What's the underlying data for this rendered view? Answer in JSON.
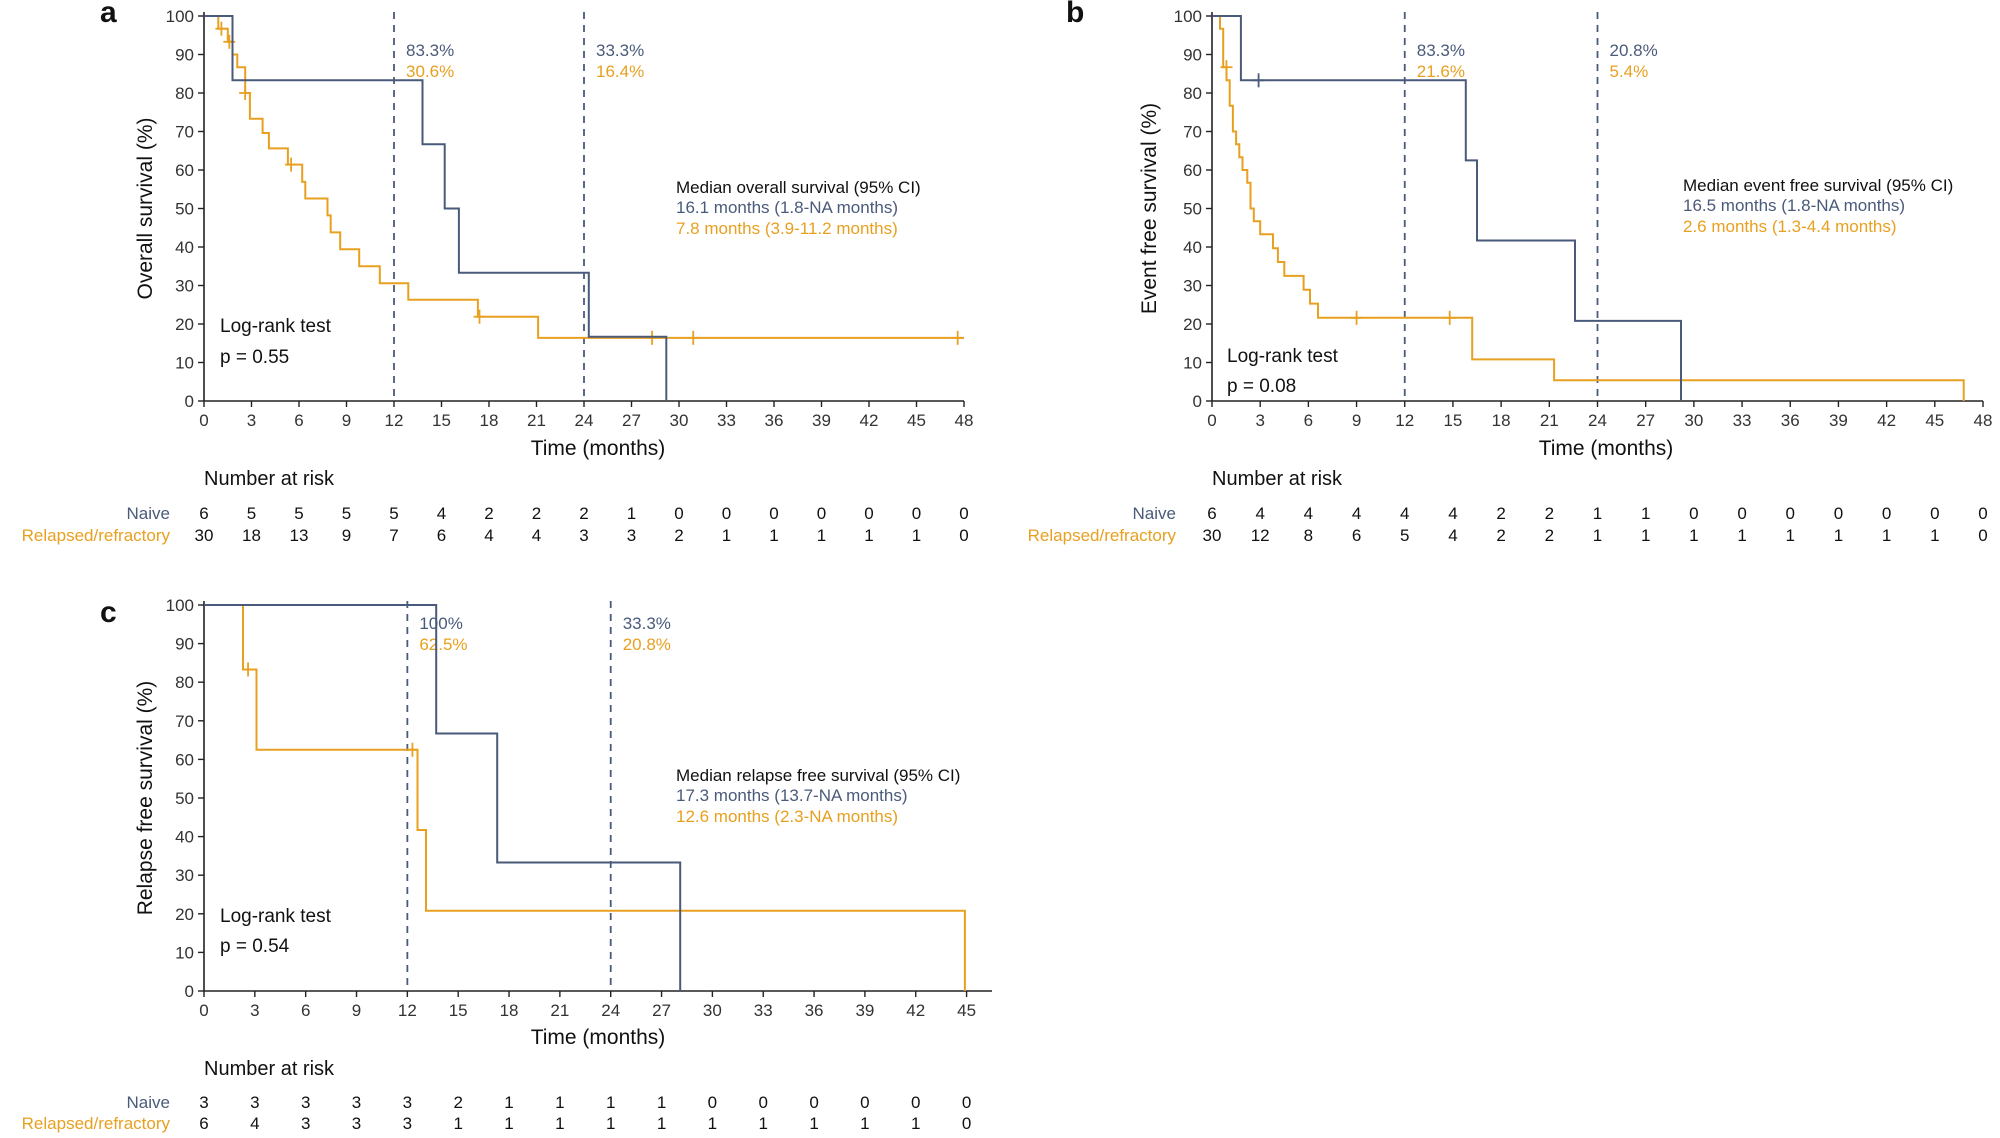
{
  "colors": {
    "naive": "#4a5a7a",
    "relapsed": "#e8a020",
    "axis": "#222222",
    "text": "#111111"
  },
  "chart_data": [
    {
      "type": "line",
      "panel_label": "a",
      "ylabel": "Overall survival (%)",
      "xlabel": "Time (months)",
      "xlim": [
        0,
        48
      ],
      "ylim": [
        0,
        100
      ],
      "xticks": [
        "0",
        "3",
        "6",
        "9",
        "12",
        "15",
        "18",
        "21",
        "24",
        "27",
        "30",
        "33",
        "36",
        "39",
        "42",
        "45",
        "48"
      ],
      "yticks": [
        "0",
        "10",
        "20",
        "30",
        "40",
        "50",
        "60",
        "70",
        "80",
        "90",
        "100"
      ],
      "series": [
        {
          "name": "Naive",
          "steps": [
            [
              0,
              100
            ],
            [
              1.8,
              100
            ],
            [
              1.8,
              83.3
            ],
            [
              13.8,
              83.3
            ],
            [
              13.8,
              66.7
            ],
            [
              15.2,
              66.7
            ],
            [
              15.2,
              50
            ],
            [
              16.1,
              50
            ],
            [
              16.1,
              33.3
            ],
            [
              24.3,
              33.3
            ],
            [
              24.3,
              16.7
            ],
            [
              29.2,
              16.7
            ],
            [
              29.2,
              0
            ]
          ],
          "censor": []
        },
        {
          "name": "Relapsed/refractory",
          "steps": [
            [
              0,
              100
            ],
            [
              0.9,
              100
            ],
            [
              0.9,
              96.7
            ],
            [
              1.5,
              96.7
            ],
            [
              1.5,
              93.3
            ],
            [
              1.8,
              93.3
            ],
            [
              1.8,
              90
            ],
            [
              2.1,
              90
            ],
            [
              2.1,
              86.7
            ],
            [
              2.6,
              86.7
            ],
            [
              2.6,
              80
            ],
            [
              2.9,
              80
            ],
            [
              2.9,
              73.3
            ],
            [
              3.7,
              73.3
            ],
            [
              3.7,
              69.6
            ],
            [
              4.1,
              69.6
            ],
            [
              4.1,
              65.6
            ],
            [
              5.3,
              65.6
            ],
            [
              5.3,
              61.4
            ],
            [
              6.2,
              61.4
            ],
            [
              6.2,
              56.9
            ],
            [
              6.4,
              56.9
            ],
            [
              6.4,
              52.6
            ],
            [
              7.8,
              52.6
            ],
            [
              7.8,
              48.2
            ],
            [
              8.0,
              48.2
            ],
            [
              8.0,
              43.8
            ],
            [
              8.6,
              43.8
            ],
            [
              8.6,
              39.4
            ],
            [
              9.8,
              39.4
            ],
            [
              9.8,
              35.0
            ],
            [
              11.1,
              35.0
            ],
            [
              11.1,
              30.6
            ],
            [
              12.9,
              30.6
            ],
            [
              12.9,
              26.3
            ],
            [
              17.3,
              26.3
            ],
            [
              17.3,
              21.9
            ],
            [
              21.1,
              21.9
            ],
            [
              21.1,
              16.4
            ],
            [
              48,
              16.4
            ]
          ],
          "censor": [
            [
              1.1,
              96.7
            ],
            [
              1.6,
              93.3
            ],
            [
              2.6,
              80
            ],
            [
              5.5,
              61.4
            ],
            [
              17.4,
              21.9
            ],
            [
              28.3,
              16.4
            ],
            [
              30.9,
              16.4
            ],
            [
              47.6,
              16.4
            ]
          ]
        }
      ],
      "vlines": [
        12,
        24
      ],
      "vline_labels": [
        {
          "x": 12,
          "naive": "83.3%",
          "relapsed": "30.6%"
        },
        {
          "x": 24,
          "naive": "33.3%",
          "relapsed": "16.4%"
        }
      ],
      "median_title": "Median overall survival (95% CI)",
      "median_naive": "16.1 months (1.8-NA months)",
      "median_relapsed": "7.8 months (3.9-11.2 months)",
      "logrank_title": "Log-rank test",
      "pvalue": "p = 0.55",
      "risk_title": "Number at risk",
      "risk_naive_label": "Naive",
      "risk_relapsed_label": "Relapsed/refractory",
      "risk_naive": [
        "6",
        "5",
        "5",
        "5",
        "5",
        "4",
        "2",
        "2",
        "2",
        "1",
        "0",
        "0",
        "0",
        "0",
        "0",
        "0",
        "0"
      ],
      "risk_relapsed": [
        "30",
        "18",
        "13",
        "9",
        "7",
        "6",
        "4",
        "4",
        "3",
        "3",
        "2",
        "1",
        "1",
        "1",
        "1",
        "1",
        "0"
      ]
    },
    {
      "type": "line",
      "panel_label": "b",
      "ylabel": "Event free survival (%)",
      "xlabel": "Time (months)",
      "xlim": [
        0,
        48
      ],
      "ylim": [
        0,
        100
      ],
      "xticks": [
        "0",
        "3",
        "6",
        "9",
        "12",
        "15",
        "18",
        "21",
        "24",
        "27",
        "30",
        "33",
        "36",
        "39",
        "42",
        "45",
        "48"
      ],
      "yticks": [
        "0",
        "10",
        "20",
        "30",
        "40",
        "50",
        "60",
        "70",
        "80",
        "90",
        "100"
      ],
      "series": [
        {
          "name": "Naive",
          "steps": [
            [
              0,
              100
            ],
            [
              1.8,
              100
            ],
            [
              1.8,
              83.3
            ],
            [
              15.8,
              83.3
            ],
            [
              15.8,
              62.5
            ],
            [
              16.5,
              62.5
            ],
            [
              16.5,
              41.7
            ],
            [
              22.6,
              41.7
            ],
            [
              22.6,
              20.8
            ],
            [
              29.2,
              20.8
            ],
            [
              29.2,
              0
            ]
          ],
          "censor": [
            [
              2.9,
              83.3
            ]
          ]
        },
        {
          "name": "Relapsed/refractory",
          "steps": [
            [
              0,
              100
            ],
            [
              0.5,
              100
            ],
            [
              0.5,
              96.7
            ],
            [
              0.7,
              96.7
            ],
            [
              0.7,
              86.7
            ],
            [
              0.9,
              86.7
            ],
            [
              0.9,
              83.3
            ],
            [
              1.1,
              83.3
            ],
            [
              1.1,
              76.7
            ],
            [
              1.3,
              76.7
            ],
            [
              1.3,
              70
            ],
            [
              1.5,
              70
            ],
            [
              1.5,
              66.7
            ],
            [
              1.7,
              66.7
            ],
            [
              1.7,
              63.3
            ],
            [
              1.9,
              63.3
            ],
            [
              1.9,
              60
            ],
            [
              2.2,
              60
            ],
            [
              2.2,
              56.7
            ],
            [
              2.4,
              56.7
            ],
            [
              2.4,
              50
            ],
            [
              2.6,
              50
            ],
            [
              2.6,
              46.7
            ],
            [
              3.0,
              46.7
            ],
            [
              3.0,
              43.3
            ],
            [
              3.8,
              43.3
            ],
            [
              3.8,
              39.7
            ],
            [
              4.1,
              39.7
            ],
            [
              4.1,
              36.1
            ],
            [
              4.5,
              36.1
            ],
            [
              4.5,
              32.5
            ],
            [
              5.7,
              32.5
            ],
            [
              5.7,
              28.9
            ],
            [
              6.1,
              28.9
            ],
            [
              6.1,
              25.3
            ],
            [
              6.6,
              25.3
            ],
            [
              6.6,
              21.6
            ],
            [
              16.2,
              21.6
            ],
            [
              16.2,
              10.8
            ],
            [
              21.3,
              10.8
            ],
            [
              21.3,
              5.4
            ],
            [
              46.8,
              5.4
            ],
            [
              46.8,
              0
            ]
          ],
          "censor": [
            [
              0.9,
              86.7
            ],
            [
              9.0,
              21.6
            ],
            [
              14.8,
              21.6
            ]
          ]
        }
      ],
      "vlines": [
        12,
        24
      ],
      "vline_labels": [
        {
          "x": 12,
          "naive": "83.3%",
          "relapsed": "21.6%"
        },
        {
          "x": 24,
          "naive": "20.8%",
          "relapsed": "5.4%"
        }
      ],
      "median_title": "Median event free survival (95% CI)",
      "median_naive": "16.5 months (1.8-NA months)",
      "median_relapsed": "2.6 months (1.3-4.4 months)",
      "logrank_title": "Log-rank test",
      "pvalue": "p = 0.08",
      "risk_title": "Number at risk",
      "risk_naive_label": "Naive",
      "risk_relapsed_label": "Relapsed/refractory",
      "risk_naive": [
        "6",
        "4",
        "4",
        "4",
        "4",
        "4",
        "2",
        "2",
        "1",
        "1",
        "0",
        "0",
        "0",
        "0",
        "0",
        "0",
        "0"
      ],
      "risk_relapsed": [
        "30",
        "12",
        "8",
        "6",
        "5",
        "4",
        "2",
        "2",
        "1",
        "1",
        "1",
        "1",
        "1",
        "1",
        "1",
        "1",
        "0"
      ]
    },
    {
      "type": "line",
      "panel_label": "c",
      "ylabel": "Relapse free survival (%)",
      "xlabel": "Time (months)",
      "xlim": [
        0,
        46.5
      ],
      "ylim": [
        0,
        100
      ],
      "xticks": [
        "0",
        "3",
        "6",
        "9",
        "12",
        "15",
        "18",
        "21",
        "24",
        "27",
        "30",
        "33",
        "36",
        "39",
        "42",
        "45"
      ],
      "yticks": [
        "0",
        "10",
        "20",
        "30",
        "40",
        "50",
        "60",
        "70",
        "80",
        "90",
        "100"
      ],
      "series": [
        {
          "name": "Naive",
          "steps": [
            [
              0,
              100
            ],
            [
              13.7,
              100
            ],
            [
              13.7,
              66.7
            ],
            [
              17.3,
              66.7
            ],
            [
              17.3,
              33.3
            ],
            [
              28.1,
              33.3
            ],
            [
              28.1,
              0
            ]
          ],
          "censor": []
        },
        {
          "name": "Relapsed/refractory",
          "steps": [
            [
              0,
              100
            ],
            [
              2.3,
              100
            ],
            [
              2.3,
              83.3
            ],
            [
              3.1,
              83.3
            ],
            [
              3.1,
              62.5
            ],
            [
              12.6,
              62.5
            ],
            [
              12.6,
              41.7
            ],
            [
              13.1,
              41.7
            ],
            [
              13.1,
              20.8
            ],
            [
              44.9,
              20.8
            ],
            [
              44.9,
              0
            ]
          ],
          "censor": [
            [
              2.6,
              83.3
            ],
            [
              12.3,
              62.5
            ]
          ]
        }
      ],
      "vlines": [
        12,
        24
      ],
      "vline_labels": [
        {
          "x": 12,
          "naive": "100%",
          "relapsed": "62.5%"
        },
        {
          "x": 24,
          "naive": "33.3%",
          "relapsed": "20.8%"
        }
      ],
      "median_title": "Median relapse free survival (95% CI)",
      "median_naive": "17.3 months (13.7-NA months)",
      "median_relapsed": "12.6 months (2.3-NA months)",
      "logrank_title": "Log-rank test",
      "pvalue": "p = 0.54",
      "risk_title": "Number at risk",
      "risk_naive_label": "Naive",
      "risk_relapsed_label": "Relapsed/refractory",
      "risk_naive": [
        "3",
        "3",
        "3",
        "3",
        "3",
        "2",
        "1",
        "1",
        "1",
        "1",
        "0",
        "0",
        "0",
        "0",
        "0",
        "0"
      ],
      "risk_relapsed": [
        "6",
        "4",
        "3",
        "3",
        "3",
        "1",
        "1",
        "1",
        "1",
        "1",
        "1",
        "1",
        "1",
        "1",
        "1",
        "0"
      ]
    }
  ]
}
